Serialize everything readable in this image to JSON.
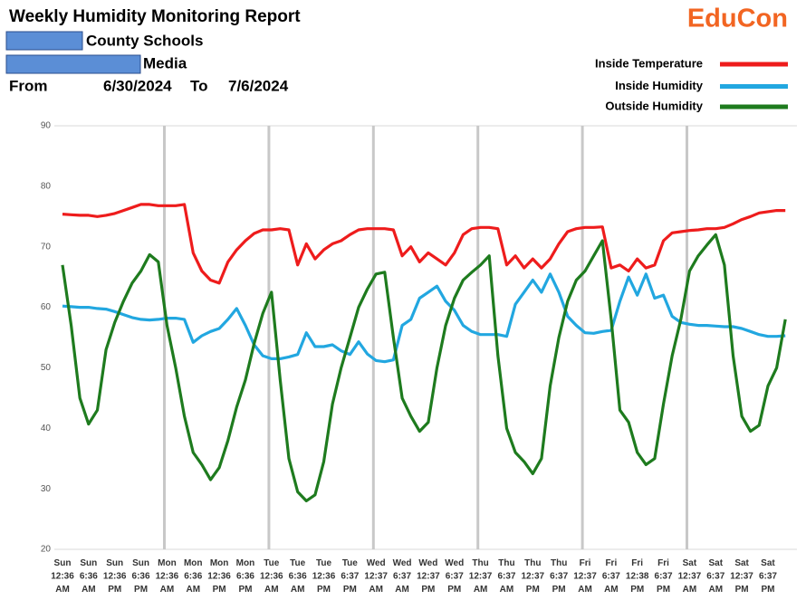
{
  "header": {
    "title": "Weekly Humidity Monitoring Report",
    "org": "County Schools",
    "site": "Media",
    "from_label": "From",
    "from_date": "6/30/2024",
    "to_label": "To",
    "to_date": "7/6/2024",
    "logo": "EduCon"
  },
  "chart_data": {
    "type": "line",
    "categories": [
      [
        "Sun",
        "12:36",
        "AM"
      ],
      null,
      null,
      [
        "Sun",
        "6:36",
        "AM"
      ],
      null,
      null,
      [
        "Sun",
        "12:36",
        "PM"
      ],
      null,
      null,
      [
        "Sun",
        "6:36",
        "PM"
      ],
      null,
      null,
      [
        "Mon",
        "12:36",
        "AM"
      ],
      null,
      null,
      [
        "Mon",
        "6:36",
        "AM"
      ],
      null,
      null,
      [
        "Mon",
        "12:36",
        "PM"
      ],
      null,
      null,
      [
        "Mon",
        "6:36",
        "PM"
      ],
      null,
      null,
      [
        "Tue",
        "12:36",
        "AM"
      ],
      null,
      null,
      [
        "Tue",
        "6:36",
        "AM"
      ],
      null,
      null,
      [
        "Tue",
        "12:36",
        "PM"
      ],
      null,
      null,
      [
        "Tue",
        "6:37",
        "PM"
      ],
      null,
      null,
      [
        "Wed",
        "12:37",
        "AM"
      ],
      null,
      null,
      [
        "Wed",
        "6:37",
        "AM"
      ],
      null,
      null,
      [
        "Wed",
        "12:37",
        "PM"
      ],
      null,
      null,
      [
        "Wed",
        "6:37",
        "PM"
      ],
      null,
      null,
      [
        "Thu",
        "12:37",
        "AM"
      ],
      null,
      null,
      [
        "Thu",
        "6:37",
        "AM"
      ],
      null,
      null,
      [
        "Thu",
        "12:37",
        "PM"
      ],
      null,
      null,
      [
        "Thu",
        "6:37",
        "PM"
      ],
      null,
      null,
      [
        "Fri",
        "12:37",
        "AM"
      ],
      null,
      null,
      [
        "Fri",
        "6:37",
        "AM"
      ],
      null,
      null,
      [
        "Fri",
        "12:38",
        "PM"
      ],
      null,
      null,
      [
        "Fri",
        "6:37",
        "PM"
      ],
      null,
      null,
      [
        "Sat",
        "12:37",
        "AM"
      ],
      null,
      null,
      [
        "Sat",
        "6:37",
        "AM"
      ],
      null,
      null,
      [
        "Sat",
        "12:37",
        "PM"
      ],
      null,
      null,
      [
        "Sat",
        "6:37",
        "PM"
      ],
      null,
      null
    ],
    "series": [
      {
        "name": "Inside Temperature",
        "color": "#ee1c1c",
        "values": [
          75.4,
          75.3,
          75.2,
          75.2,
          75.0,
          75.2,
          75.5,
          76.0,
          76.5,
          77.0,
          77.0,
          76.8,
          76.8,
          76.8,
          77.0,
          69,
          66,
          64.5,
          64,
          67.5,
          69.5,
          71,
          72.2,
          72.8,
          72.8,
          73,
          72.8,
          67,
          70.5,
          68,
          69.5,
          70.5,
          71,
          72,
          72.8,
          73,
          73,
          73,
          72.8,
          68.5,
          70,
          67.5,
          69,
          68,
          67,
          69,
          72,
          73,
          73.2,
          73.2,
          73,
          67,
          68.5,
          66.5,
          68,
          66.5,
          68,
          70.5,
          72.5,
          73,
          73.2,
          73.2,
          73.3,
          66.5,
          67,
          66,
          68,
          66.5,
          67,
          71,
          72.3,
          72.5,
          72.7,
          72.8,
          73,
          73,
          73.2,
          73.8,
          74.5,
          75,
          75.6,
          75.8,
          76,
          76
        ]
      },
      {
        "name": "Inside Humidity",
        "color": "#22a7e0",
        "values": [
          60.2,
          60.1,
          60.0,
          60.0,
          59.8,
          59.7,
          59.3,
          58.8,
          58.3,
          58.0,
          57.9,
          58.0,
          58.2,
          58.2,
          58.0,
          54.2,
          55.3,
          56,
          56.5,
          58,
          59.8,
          57,
          53.8,
          52,
          51.5,
          51.5,
          51.8,
          52.2,
          55.8,
          53.5,
          53.5,
          53.8,
          52.8,
          52.2,
          54.3,
          52.3,
          51.2,
          51,
          51.3,
          57,
          58,
          61.5,
          62.5,
          63.5,
          61,
          59.5,
          57,
          56,
          55.5,
          55.5,
          55.5,
          55.2,
          60.5,
          62.5,
          64.5,
          62.5,
          65.5,
          62.5,
          58.5,
          57,
          55.8,
          55.7,
          56,
          56.2,
          61,
          65,
          62,
          65.5,
          61.5,
          62,
          58.5,
          57.5,
          57.2,
          57,
          57,
          56.9,
          56.8,
          56.8,
          56.5,
          56,
          55.5,
          55.2,
          55.2,
          55.3
        ]
      },
      {
        "name": "Outside Humidity",
        "color": "#1e7b1e",
        "values": [
          67,
          57,
          45,
          40.7,
          43,
          53,
          57.5,
          61,
          64,
          66,
          68.7,
          67.5,
          57,
          50,
          42,
          36,
          34,
          31.5,
          33.5,
          38,
          43.5,
          48,
          54,
          59,
          62.5,
          48,
          35,
          29.5,
          28,
          29,
          34.5,
          44,
          50,
          55,
          60,
          63,
          65.5,
          65.8,
          55,
          45,
          42,
          39.5,
          41,
          50,
          57,
          61.5,
          64.5,
          65.8,
          67,
          68.5,
          52,
          40,
          36,
          34.5,
          32.5,
          35,
          47,
          55,
          61,
          64.5,
          66,
          68.5,
          71,
          58,
          43,
          41,
          36,
          34,
          35,
          44,
          52,
          58,
          66,
          68.5,
          70.3,
          72,
          67,
          52,
          42,
          39.5,
          40.5,
          47,
          50,
          58
        ]
      }
    ],
    "ylim": [
      20,
      90
    ],
    "yticks": [
      20,
      30,
      40,
      50,
      60,
      70,
      80,
      90
    ],
    "grid": false,
    "legend": "top-right"
  }
}
